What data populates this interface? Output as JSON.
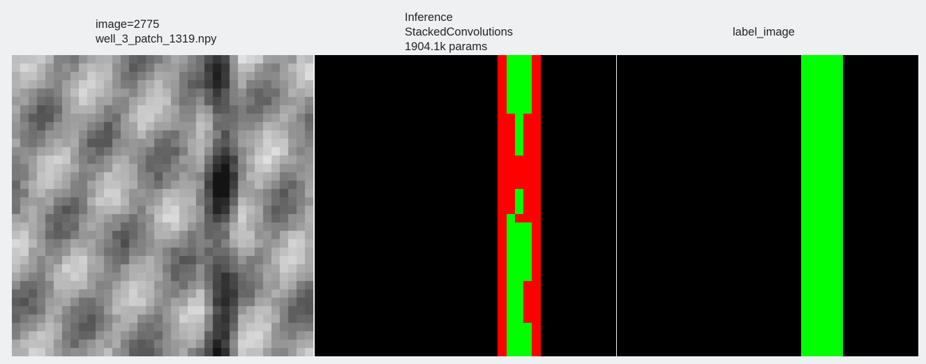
{
  "panels": [
    {
      "title_lines": [
        "image=2775",
        "well_3_patch_1319.npy"
      ]
    },
    {
      "title_lines": [
        "Inference",
        "StackedConvolutions",
        "1904.1k params"
      ]
    },
    {
      "title_lines": [
        "label_image"
      ]
    }
  ],
  "colors": {
    "background": "#eff0f2",
    "mask_background": "#000000",
    "mask_green": "#00ff00",
    "mask_red": "#ff0000",
    "text": "#222222"
  }
}
